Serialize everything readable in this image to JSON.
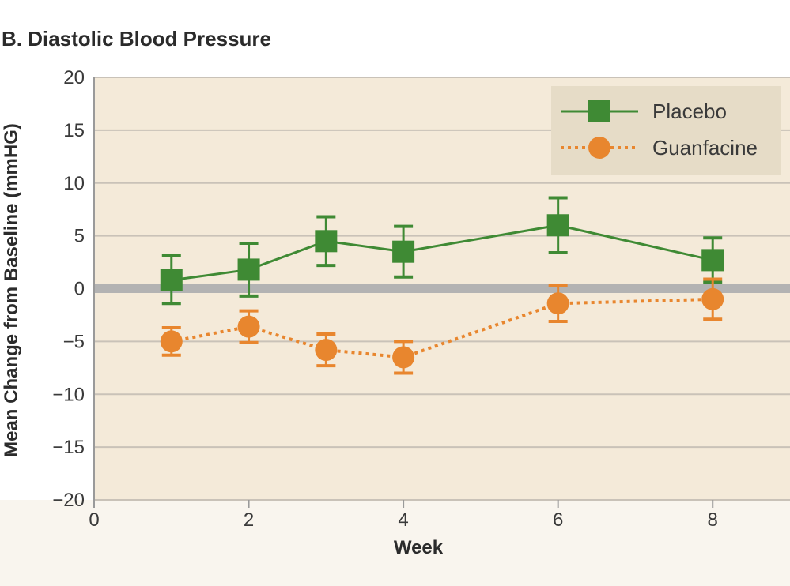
{
  "chart_data": {
    "type": "line",
    "title": "B. Diastolic Blood Pressure",
    "xlabel": "Week",
    "ylabel": "Mean Change from Baseline (mmHG)",
    "xlim": [
      0,
      9
    ],
    "ylim": [
      -20,
      20
    ],
    "x_ticks": [
      0,
      2,
      4,
      6,
      8
    ],
    "y_ticks": [
      20,
      15,
      10,
      5,
      0,
      -5,
      -10,
      -15,
      -20
    ],
    "y_tick_labels": [
      "20",
      "15",
      "10",
      "5",
      "0",
      "−5",
      "−10",
      "−15",
      "−20"
    ],
    "grid": true,
    "legend_position": "top-right",
    "reference_line": 0,
    "series": [
      {
        "name": "Placebo",
        "color": "#3f8a34",
        "marker": "square",
        "line_style": "solid",
        "x": [
          1,
          2,
          3,
          4,
          6,
          8
        ],
        "y": [
          0.8,
          1.8,
          4.5,
          3.5,
          6.0,
          2.7
        ],
        "err_low": [
          -1.4,
          -0.7,
          2.2,
          1.1,
          3.4,
          0.6
        ],
        "err_high": [
          3.1,
          4.3,
          6.8,
          5.9,
          8.6,
          4.8
        ]
      },
      {
        "name": "Guanfacine",
        "color": "#e8862e",
        "marker": "circle",
        "line_style": "dotted",
        "x": [
          1,
          2,
          3,
          4,
          6,
          8
        ],
        "y": [
          -5.0,
          -3.6,
          -5.8,
          -6.5,
          -1.4,
          -1.0
        ],
        "err_low": [
          -6.3,
          -5.1,
          -7.3,
          -8.0,
          -3.1,
          -2.9
        ],
        "err_high": [
          -3.7,
          -2.1,
          -4.3,
          -5.0,
          0.3,
          0.9
        ]
      }
    ]
  },
  "colors": {
    "plot_background": "#f4ead9",
    "grid_line": "#c9c2b8",
    "zero_line": "#b3b3b3",
    "legend_background": "#e6dcc7"
  }
}
